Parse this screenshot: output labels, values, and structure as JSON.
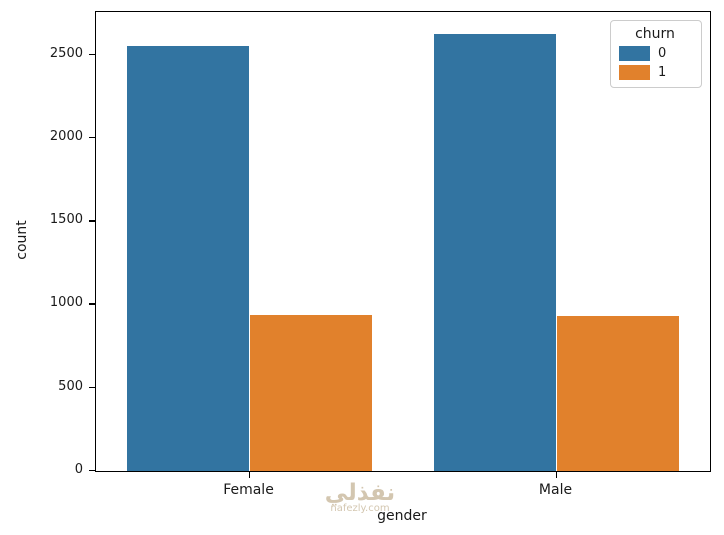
{
  "chart_data": {
    "type": "bar",
    "categories": [
      "Female",
      "Male"
    ],
    "series": [
      {
        "name": "0",
        "color": "#3274a1",
        "values": [
          2549,
          2625
        ]
      },
      {
        "name": "1",
        "color": "#e1812c",
        "values": [
          939,
          930
        ]
      }
    ],
    "title": "",
    "xlabel": "gender",
    "ylabel": "count",
    "ylim": [
      0,
      2756
    ],
    "yticks": [
      0,
      500,
      1000,
      1500,
      2000,
      2500
    ],
    "grid": false,
    "legend": {
      "title": "churn",
      "position": "upper right"
    }
  },
  "watermark": {
    "line1": "نفذلي",
    "line2": "nafezly.com",
    "color": "#c9b99d"
  }
}
